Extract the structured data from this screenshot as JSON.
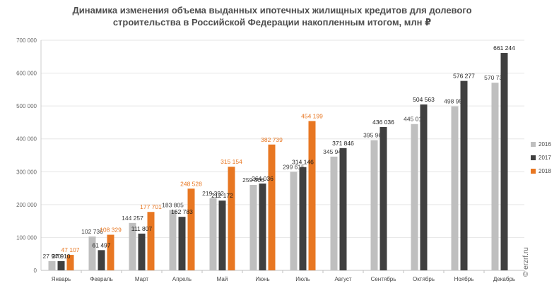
{
  "title": "Динамика изменения объема выданных ипотечных жилищных кредитов для долевого строительства  в Российской  Федерации накопленным итогом, млн ₽",
  "watermark": "© erzrf.ru",
  "chart_data": {
    "type": "bar",
    "title": "Динамика изменения объема выданных ипотечных жилищных кредитов для долевого строительства  в Российской  Федерации накопленным итогом, млн ₽",
    "xlabel": "",
    "ylabel": "",
    "ylim": [
      0,
      700000
    ],
    "yticks": [
      0,
      100000,
      200000,
      300000,
      400000,
      500000,
      600000,
      700000
    ],
    "ytick_labels": [
      "0",
      "100 000",
      "200 000",
      "300 000",
      "400 000",
      "500 000",
      "600 000",
      "700 000"
    ],
    "grid": true,
    "legend_position": "right",
    "categories": [
      "Январь",
      "Февраль",
      "Март",
      "Апрель",
      "Май",
      "Июнь",
      "Июль",
      "Август",
      "Сентябрь",
      "Октябрь",
      "Ноябрь",
      "Декабрь"
    ],
    "series": [
      {
        "name": "2016",
        "color": "#bfbfbf",
        "label_color": "#404040",
        "values": [
          27940,
          102736,
          144257,
          183805,
          219392,
          259806,
          299615,
          345942,
          395961,
          445019,
          498955,
          570736
        ],
        "labels": [
          "27 940",
          "102 736",
          "144 257",
          "183 805",
          "219 392",
          "259 806",
          "299 615",
          "345 942",
          "395 961",
          "445 019",
          "498 955",
          "570 736"
        ]
      },
      {
        "name": "2017",
        "color": "#404040",
        "label_color": "#1a1a1a",
        "values": [
          27910,
          61497,
          111807,
          162783,
          212172,
          264036,
          314146,
          371846,
          436036,
          504563,
          576277,
          661244
        ],
        "labels": [
          "27 910",
          "61 497",
          "111 807",
          "162 783",
          "212 172",
          "264 036",
          "314 146",
          "371 846",
          "436 036",
          "504 563",
          "576 277",
          "661 244"
        ]
      },
      {
        "name": "2018",
        "color": "#e87722",
        "label_color": "#e87722",
        "values": [
          47107,
          108329,
          177701,
          248528,
          315154,
          382739,
          454199,
          null,
          null,
          null,
          null,
          null
        ],
        "labels": [
          "47 107",
          "108 329",
          "177 701",
          "248 528",
          "315 154",
          "382 739",
          "454 199",
          null,
          null,
          null,
          null,
          null
        ]
      }
    ]
  }
}
